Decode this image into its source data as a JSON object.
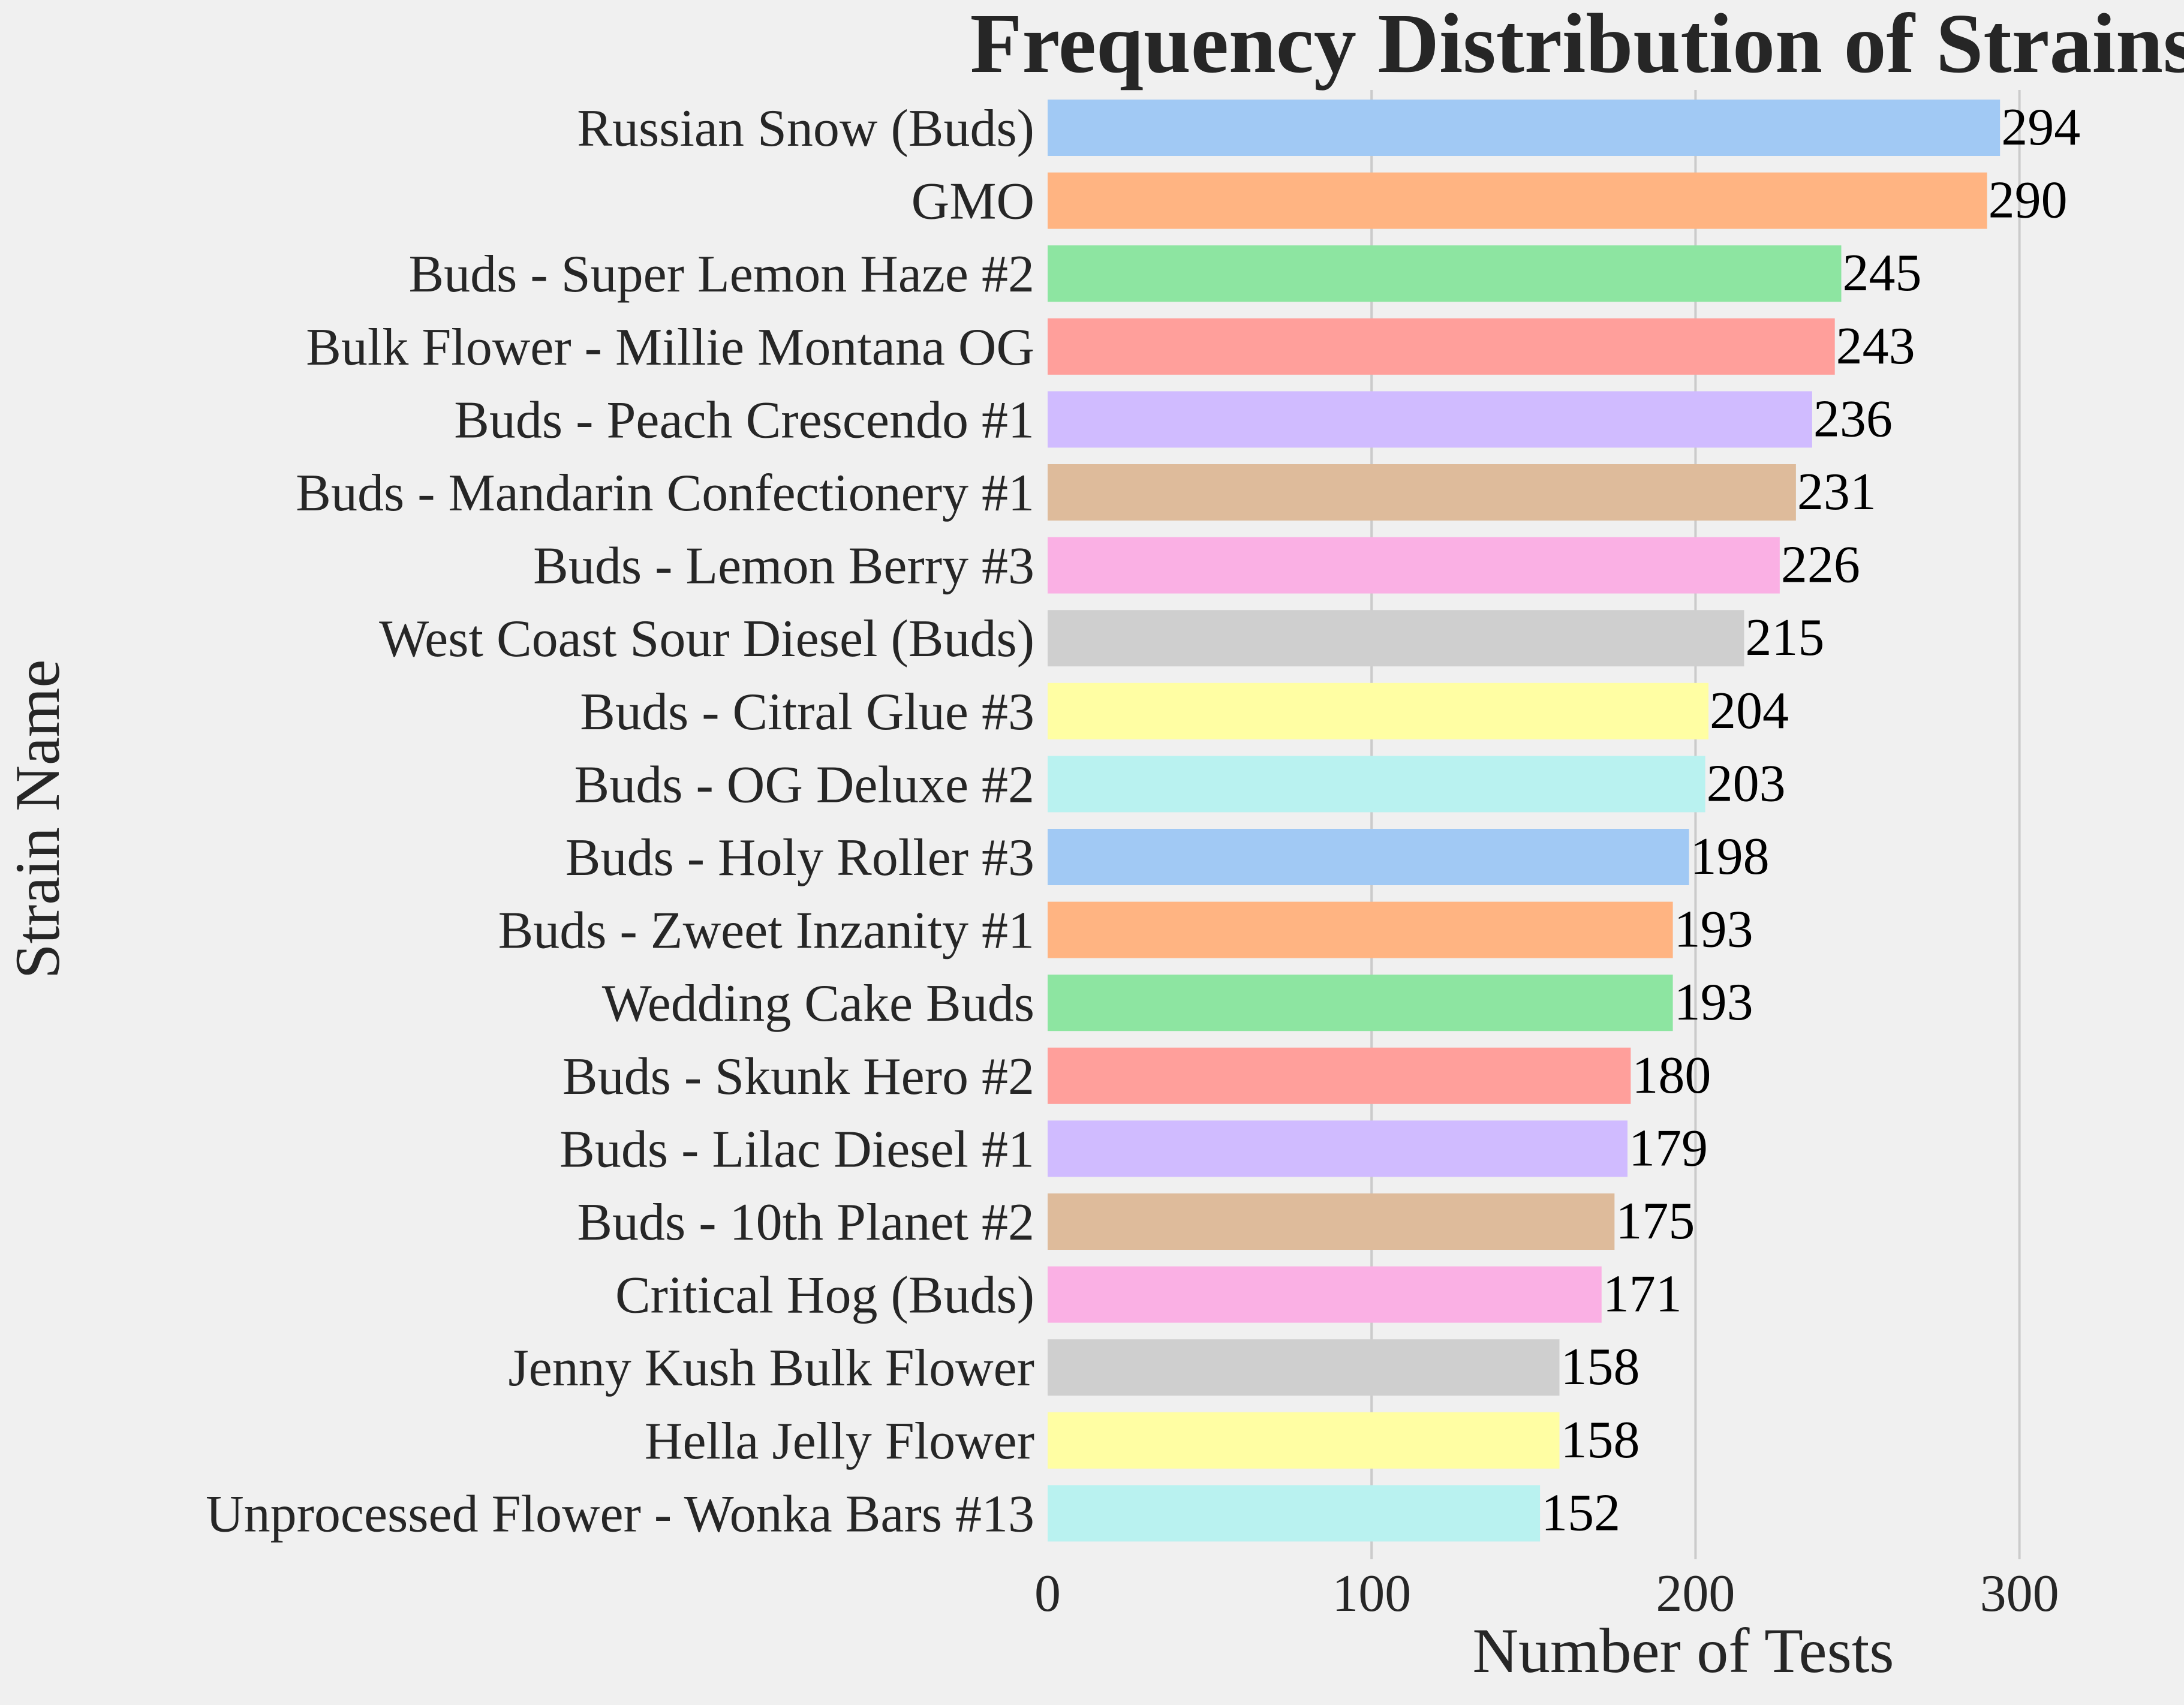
{
  "chart_data": {
    "type": "bar",
    "orientation": "horizontal",
    "title": "Frequency Distribution of Strains",
    "xlabel": "Number of Tests",
    "ylabel": "Strain Name",
    "xlim": [
      0,
      340
    ],
    "xticks": [
      0,
      100,
      200,
      300
    ],
    "grid": "vertical",
    "categories": [
      "Russian Snow (Buds)",
      "GMO",
      "Buds - Super Lemon Haze #2",
      "Bulk Flower - Millie Montana OG",
      "Buds - Peach Crescendo #1",
      "Buds - Mandarin Confectionery #1",
      "Buds - Lemon Berry #3",
      "West Coast Sour Diesel (Buds)",
      "Buds - Citral Glue #3",
      "Buds - OG Deluxe #2",
      "Buds - Holy Roller #3",
      "Buds - Zweet Inzanity #1",
      "Wedding Cake Buds",
      "Buds - Skunk Hero #2",
      "Buds - Lilac Diesel #1",
      "Buds - 10th Planet #2",
      "Critical Hog (Buds)",
      "Jenny Kush Bulk Flower",
      "Hella Jelly Flower",
      "Unprocessed Flower - Wonka Bars #13"
    ],
    "values": [
      294,
      290,
      245,
      243,
      236,
      231,
      226,
      215,
      204,
      203,
      198,
      193,
      193,
      180,
      179,
      175,
      171,
      158,
      158,
      152
    ],
    "colors": [
      "#a1c9f4",
      "#ffb482",
      "#8de5a1",
      "#ff9f9b",
      "#d0bbff",
      "#debb9b",
      "#fab0e4",
      "#cfcfcf",
      "#fffea3",
      "#b9f2f0"
    ],
    "background": "#f0f0f0",
    "grid_color": "#cbcbcb"
  }
}
